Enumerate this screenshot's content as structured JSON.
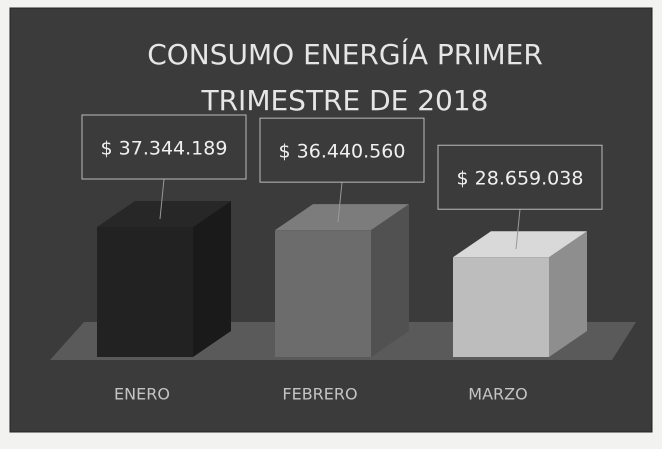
{
  "chart_data": {
    "type": "bar3d",
    "title": "CONSUMO ENERGÍA PRIMER TRIMESTRE DE 2018",
    "categories": [
      "ENERO",
      "FEBRERO",
      "MARZO"
    ],
    "values": [
      37344189,
      36440560,
      28659038
    ],
    "value_labels": [
      "$ 37.344.189",
      "$ 36.440.560",
      "$ 28.659.038"
    ],
    "colors": [
      "#222222",
      "#6c6c6c",
      "#bdbdbd"
    ]
  }
}
